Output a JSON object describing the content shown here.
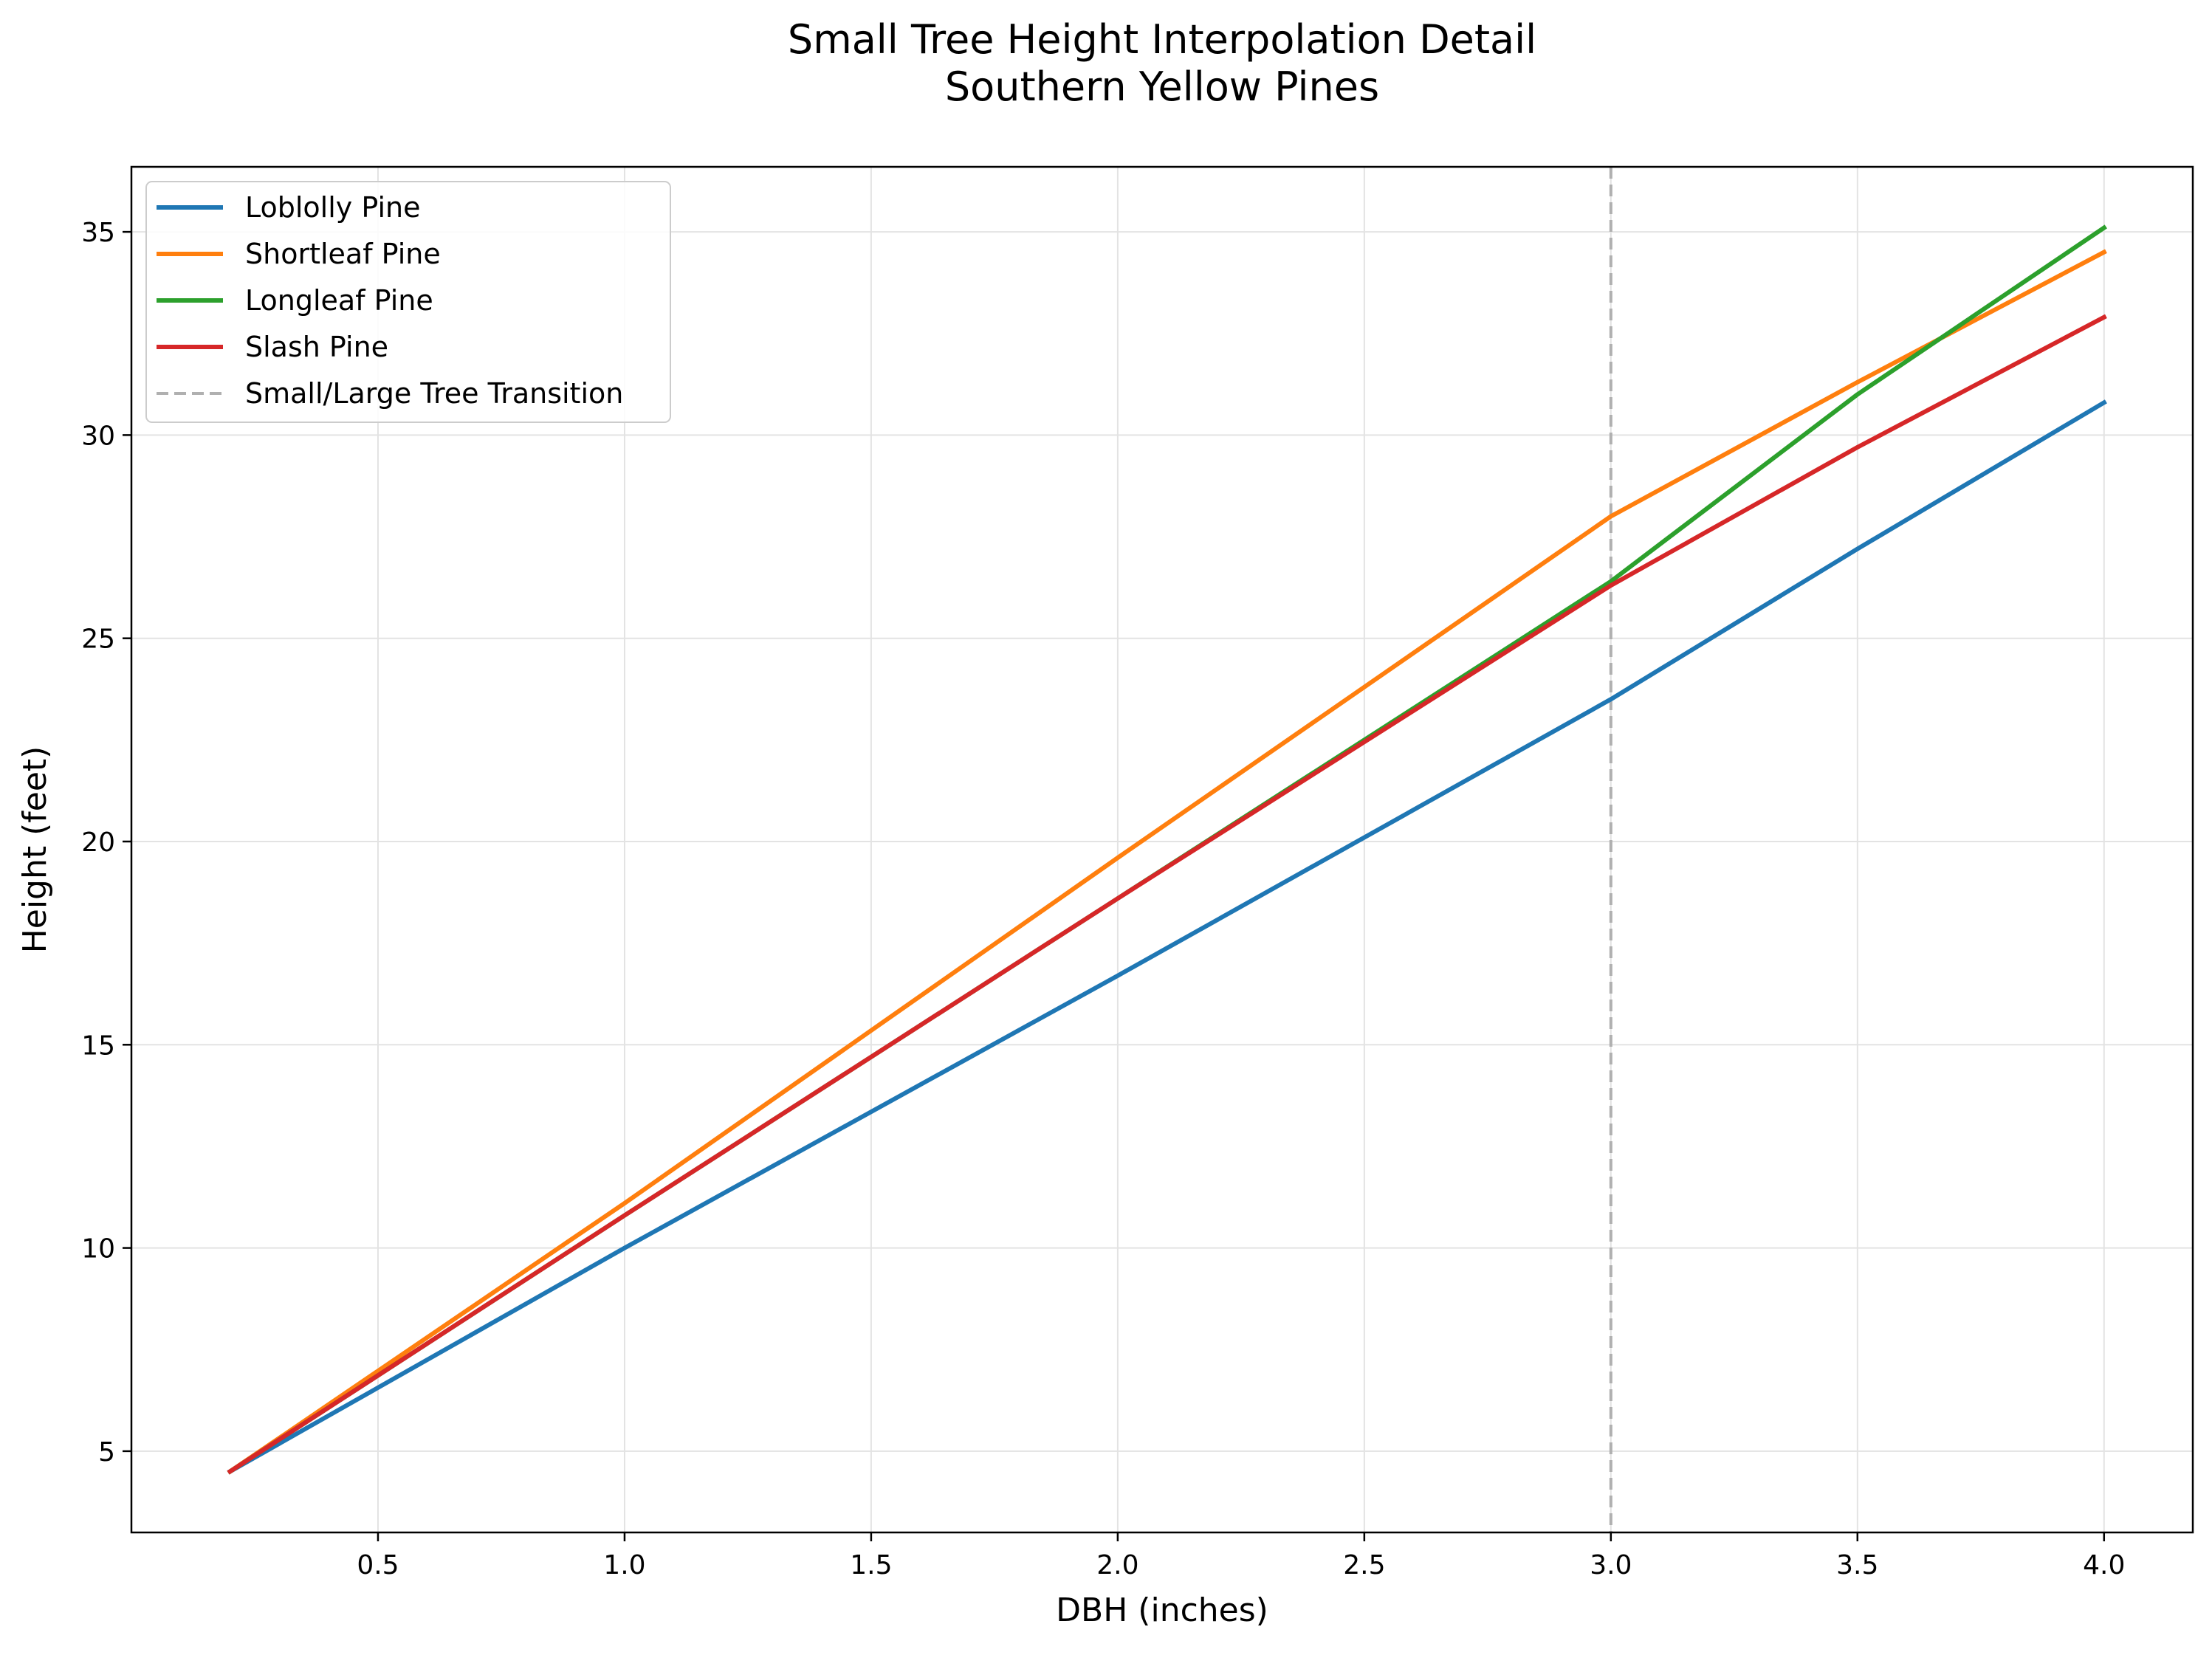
{
  "chart_data": {
    "type": "line",
    "title": "Small Tree Height Interpolation Detail",
    "subtitle": "Southern Yellow Pines",
    "xlabel": "DBH (inches)",
    "ylabel": "Height (feet)",
    "xlim": [
      0.0,
      4.18
    ],
    "ylim": [
      3.0,
      36.6
    ],
    "xticks": [
      0.5,
      1.0,
      1.5,
      2.0,
      2.5,
      3.0,
      3.5,
      4.0
    ],
    "xtick_labels": [
      "0.5",
      "1.0",
      "1.5",
      "2.0",
      "2.5",
      "3.0",
      "3.5",
      "4.0"
    ],
    "yticks": [
      5,
      10,
      15,
      20,
      25,
      30,
      35
    ],
    "ytick_labels": [
      "5",
      "10",
      "15",
      "20",
      "25",
      "30",
      "35"
    ],
    "grid": true,
    "legend_position": "top-left",
    "series": [
      {
        "name": "Loblolly Pine",
        "color": "#1f77b4",
        "x": [
          0.2,
          1.0,
          2.0,
          3.0,
          3.5,
          4.0
        ],
        "y": [
          4.5,
          10.0,
          16.7,
          23.5,
          27.2,
          30.8
        ]
      },
      {
        "name": "Shortleaf Pine",
        "color": "#ff7f0e",
        "x": [
          0.2,
          1.0,
          2.0,
          3.0,
          3.5,
          4.0
        ],
        "y": [
          4.5,
          11.1,
          19.6,
          28.0,
          31.3,
          34.5
        ]
      },
      {
        "name": "Longleaf Pine",
        "color": "#2ca02c",
        "x": [
          0.2,
          1.0,
          2.0,
          3.0,
          3.5,
          4.0
        ],
        "y": [
          4.5,
          10.8,
          18.6,
          26.4,
          31.0,
          35.1
        ]
      },
      {
        "name": "Slash Pine",
        "color": "#d62728",
        "x": [
          0.2,
          1.0,
          2.0,
          3.0,
          3.5,
          4.0
        ],
        "y": [
          4.5,
          10.8,
          18.6,
          26.3,
          29.7,
          32.9
        ]
      }
    ],
    "reference_lines": [
      {
        "name": "Small/Large Tree Transition",
        "orientation": "vertical",
        "x": 3.0,
        "color": "#b0b0b0",
        "style": "dashed"
      }
    ]
  }
}
